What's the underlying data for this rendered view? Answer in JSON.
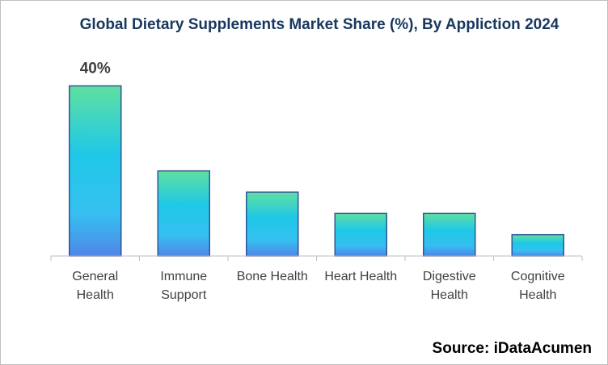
{
  "chart_data": {
    "type": "bar",
    "title": "Global Dietary Supplements Market Share (%), By Appliction 2024",
    "categories": [
      [
        "General",
        "Health"
      ],
      [
        "Immune",
        "Support"
      ],
      [
        "Bone Health"
      ],
      [
        "Heart Health"
      ],
      [
        "Digestive",
        "Health"
      ],
      [
        "Cognitive",
        "Health"
      ]
    ],
    "values": [
      40,
      20,
      15,
      10,
      10,
      5
    ],
    "data_labels": [
      "40%",
      "",
      "",
      "",
      "",
      ""
    ],
    "xlabel": "",
    "ylabel": "",
    "ylim": [
      0,
      45
    ],
    "grid": false,
    "colors": {
      "bar_top": "#5fe0a0",
      "bar_mid": "#1fc8e8",
      "bar_bottom": "#4f86e8",
      "bar_border": "#2f5597",
      "axis": "#bfbfbf",
      "label": "#404040"
    }
  },
  "source": "Source: iDataAcumen"
}
